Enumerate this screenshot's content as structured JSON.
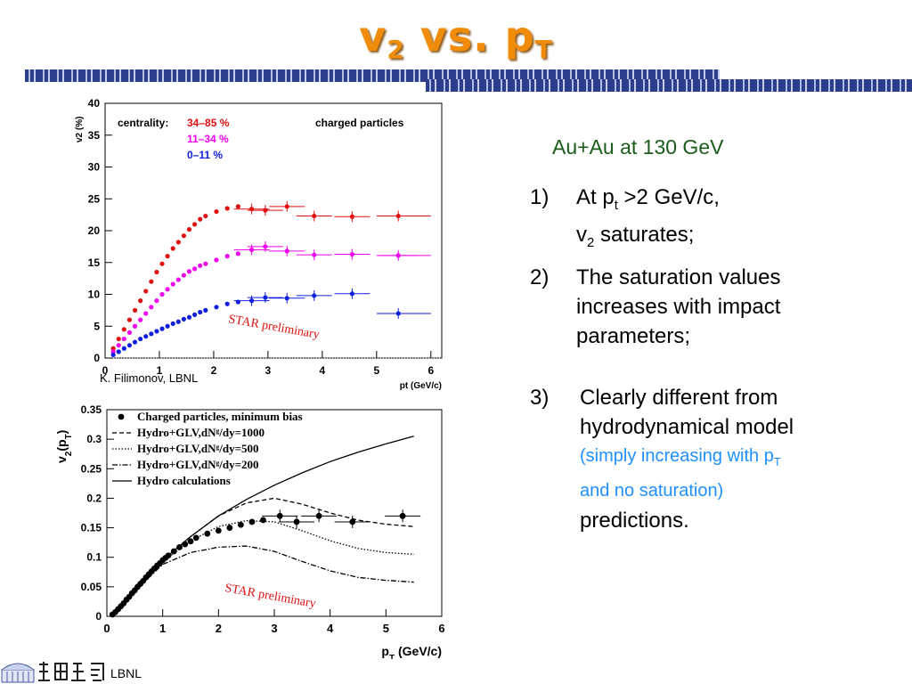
{
  "slide": {
    "title_main": "v",
    "title_sub1": "2",
    "title_mid": " vs. p",
    "title_sub2": "T",
    "credit": "K. Filimonov, LBNL",
    "logo_text": "LBNL"
  },
  "notes": {
    "headline": "Au+Au at 130 GeV",
    "item1_num": "1)",
    "item1_line1_a": "At p",
    "item1_line1_sub": "t",
    "item1_line1_b": " >2 GeV/c,",
    "item1_line2_a": "v",
    "item1_line2_sub": "2",
    "item1_line2_b": " saturates;",
    "item2_num": "2)",
    "item2_text": "The saturation values increases with impact parameters;",
    "item3_num": "3)",
    "item3_line1": "Clearly different from hydrodynamical model",
    "item3_blue1_a": "(simply increasing with p",
    "item3_blue1_sub": "T",
    "item3_blue2": " and no saturation)",
    "item3_line2": "predictions."
  },
  "chart_data": [
    {
      "type": "scatter",
      "xlabel": "pt (GeV/c)",
      "ylabel": "v2 (%)",
      "xlim": [
        0,
        6.2
      ],
      "ylim": [
        0,
        40
      ],
      "xticks": [
        "0",
        "1",
        "2",
        "3",
        "4",
        "5",
        "6"
      ],
      "yticks": [
        "0",
        "5",
        "10",
        "15",
        "20",
        "25",
        "30",
        "35",
        "40"
      ],
      "legend_title": "centrality:",
      "annotation_right": "charged particles",
      "watermark": "STAR preliminary",
      "series": [
        {
          "name": "34–85 %",
          "color": "#e01010",
          "points": [
            [
              0.15,
              1.5
            ],
            [
              0.25,
              3
            ],
            [
              0.35,
              4.5
            ],
            [
              0.45,
              6
            ],
            [
              0.55,
              7.5
            ],
            [
              0.65,
              9
            ],
            [
              0.75,
              10.5
            ],
            [
              0.85,
              12
            ],
            [
              0.95,
              13.5
            ],
            [
              1.05,
              14.8
            ],
            [
              1.15,
              16
            ],
            [
              1.25,
              17.2
            ],
            [
              1.35,
              18.2
            ],
            [
              1.45,
              19.2
            ],
            [
              1.55,
              20.2
            ],
            [
              1.65,
              21
            ],
            [
              1.75,
              21.8
            ],
            [
              1.85,
              22.3
            ],
            [
              2.05,
              23
            ],
            [
              2.25,
              23.5
            ],
            [
              2.45,
              23.8
            ],
            [
              2.7,
              23.4
            ],
            [
              2.95,
              23.2
            ],
            [
              3.35,
              23.8
            ],
            [
              3.85,
              22.3
            ],
            [
              4.55,
              22.2
            ],
            [
              5.4,
              22.3
            ]
          ]
        },
        {
          "name": "11–34 %",
          "color": "#f000f0",
          "points": [
            [
              0.15,
              1
            ],
            [
              0.25,
              2
            ],
            [
              0.35,
              3
            ],
            [
              0.45,
              4
            ],
            [
              0.55,
              5
            ],
            [
              0.65,
              6
            ],
            [
              0.75,
              7
            ],
            [
              0.85,
              8
            ],
            [
              0.95,
              9
            ],
            [
              1.05,
              10
            ],
            [
              1.15,
              10.8
            ],
            [
              1.25,
              11.6
            ],
            [
              1.35,
              12.3
            ],
            [
              1.45,
              13
            ],
            [
              1.55,
              13.6
            ],
            [
              1.65,
              14
            ],
            [
              1.75,
              14.5
            ],
            [
              1.85,
              14.8
            ],
            [
              2.05,
              15.4
            ],
            [
              2.25,
              16
            ],
            [
              2.45,
              16.4
            ],
            [
              2.7,
              17
            ],
            [
              2.95,
              17.5
            ],
            [
              3.35,
              16.8
            ],
            [
              3.85,
              16.2
            ],
            [
              4.55,
              16.3
            ],
            [
              5.4,
              16.1
            ]
          ]
        },
        {
          "name": "0–11 %",
          "color": "#1020e0",
          "points": [
            [
              0.15,
              0.5
            ],
            [
              0.25,
              1
            ],
            [
              0.35,
              1.5
            ],
            [
              0.45,
              2
            ],
            [
              0.55,
              2.5
            ],
            [
              0.65,
              3
            ],
            [
              0.75,
              3.4
            ],
            [
              0.85,
              3.8
            ],
            [
              0.95,
              4.2
            ],
            [
              1.05,
              4.6
            ],
            [
              1.15,
              5
            ],
            [
              1.25,
              5.4
            ],
            [
              1.35,
              5.7
            ],
            [
              1.45,
              6.1
            ],
            [
              1.55,
              6.4
            ],
            [
              1.65,
              6.8
            ],
            [
              1.75,
              7.2
            ],
            [
              1.85,
              7.5
            ],
            [
              2.05,
              8
            ],
            [
              2.25,
              8.5
            ],
            [
              2.45,
              8.8
            ],
            [
              2.7,
              9
            ],
            [
              2.95,
              9.5
            ],
            [
              3.35,
              9.4
            ],
            [
              3.85,
              9.8
            ],
            [
              4.55,
              10.1
            ],
            [
              5.4,
              7
            ]
          ]
        }
      ]
    },
    {
      "type": "line",
      "xlabel": "p_T (GeV/c)",
      "ylabel": "v_2(p_T)",
      "xlim": [
        0,
        6
      ],
      "ylim": [
        0,
        0.35
      ],
      "xticks": [
        "0",
        "1",
        "2",
        "3",
        "4",
        "5",
        "6"
      ],
      "yticks": [
        "0",
        "0.05",
        "0.1",
        "0.15",
        "0.2",
        "0.25",
        "0.3",
        "0.35"
      ],
      "watermark": "STAR preliminary",
      "legend": [
        "Charged particles, minimum bias",
        "Hydro+GLV,dNᵍ/dy=1000",
        "Hydro+GLV,dNᵍ/dy=500",
        "Hydro+GLV,dNᵍ/dy=200",
        "Hydro calculations"
      ],
      "series": [
        {
          "name": "Charged particles, minimum bias",
          "style": "points",
          "points": [
            [
              0.1,
              0.003
            ],
            [
              0.15,
              0.007
            ],
            [
              0.2,
              0.012
            ],
            [
              0.25,
              0.017
            ],
            [
              0.3,
              0.022
            ],
            [
              0.35,
              0.028
            ],
            [
              0.4,
              0.033
            ],
            [
              0.45,
              0.039
            ],
            [
              0.5,
              0.044
            ],
            [
              0.55,
              0.05
            ],
            [
              0.6,
              0.055
            ],
            [
              0.65,
              0.06
            ],
            [
              0.7,
              0.066
            ],
            [
              0.75,
              0.071
            ],
            [
              0.8,
              0.076
            ],
            [
              0.85,
              0.081
            ],
            [
              0.9,
              0.086
            ],
            [
              0.95,
              0.09
            ],
            [
              1.0,
              0.095
            ],
            [
              1.05,
              0.099
            ],
            [
              1.1,
              0.103
            ],
            [
              1.2,
              0.11
            ],
            [
              1.3,
              0.117
            ],
            [
              1.4,
              0.122
            ],
            [
              1.5,
              0.127
            ],
            [
              1.6,
              0.133
            ],
            [
              1.8,
              0.14
            ],
            [
              2.0,
              0.145
            ],
            [
              2.2,
              0.15
            ],
            [
              2.4,
              0.155
            ],
            [
              2.6,
              0.16
            ],
            [
              2.8,
              0.163
            ],
            [
              3.1,
              0.17
            ],
            [
              3.4,
              0.16
            ],
            [
              3.8,
              0.17
            ],
            [
              4.4,
              0.16
            ],
            [
              5.3,
              0.17
            ]
          ]
        },
        {
          "name": "Hydro+GLV,dNᵍ/dy=1000",
          "style": "dashed",
          "points": [
            [
              0.1,
              0.002
            ],
            [
              0.5,
              0.045
            ],
            [
              1.0,
              0.095
            ],
            [
              1.5,
              0.135
            ],
            [
              2.0,
              0.17
            ],
            [
              2.5,
              0.192
            ],
            [
              3.0,
              0.2
            ],
            [
              3.5,
              0.19
            ],
            [
              4.0,
              0.175
            ],
            [
              4.5,
              0.163
            ],
            [
              5.0,
              0.156
            ],
            [
              5.5,
              0.152
            ]
          ]
        },
        {
          "name": "Hydro+GLV,dNᵍ/dy=500",
          "style": "dotted",
          "points": [
            [
              0.1,
              0.002
            ],
            [
              0.5,
              0.045
            ],
            [
              1.0,
              0.093
            ],
            [
              1.5,
              0.128
            ],
            [
              2.0,
              0.152
            ],
            [
              2.5,
              0.162
            ],
            [
              3.0,
              0.16
            ],
            [
              3.5,
              0.145
            ],
            [
              4.0,
              0.128
            ],
            [
              4.5,
              0.115
            ],
            [
              5.0,
              0.108
            ],
            [
              5.5,
              0.105
            ]
          ]
        },
        {
          "name": "Hydro+GLV,dNᵍ/dy=200",
          "style": "dashdot",
          "points": [
            [
              0.1,
              0.002
            ],
            [
              0.5,
              0.043
            ],
            [
              1.0,
              0.088
            ],
            [
              1.5,
              0.108
            ],
            [
              2.0,
              0.117
            ],
            [
              2.5,
              0.119
            ],
            [
              3.0,
              0.11
            ],
            [
              3.5,
              0.093
            ],
            [
              4.0,
              0.077
            ],
            [
              4.5,
              0.066
            ],
            [
              5.0,
              0.061
            ],
            [
              5.5,
              0.058
            ]
          ]
        },
        {
          "name": "Hydro calculations",
          "style": "solid",
          "points": [
            [
              0.1,
              0.002
            ],
            [
              0.5,
              0.045
            ],
            [
              1.0,
              0.095
            ],
            [
              1.5,
              0.135
            ],
            [
              2.0,
              0.17
            ],
            [
              2.5,
              0.198
            ],
            [
              3.0,
              0.222
            ],
            [
              3.5,
              0.243
            ],
            [
              4.0,
              0.262
            ],
            [
              4.5,
              0.278
            ],
            [
              5.0,
              0.292
            ],
            [
              5.5,
              0.305
            ]
          ]
        }
      ]
    }
  ]
}
